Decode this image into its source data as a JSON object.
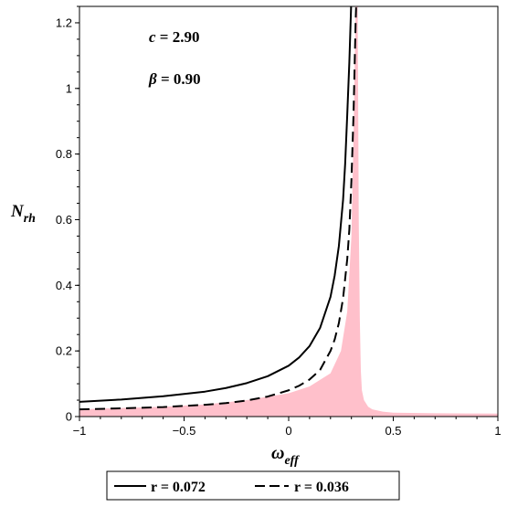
{
  "chart_data": {
    "type": "line",
    "xlabel": {
      "base": "ω",
      "sub": "eff"
    },
    "ylabel": {
      "base": "N",
      "sub": "rh"
    },
    "xlim": [
      -1,
      1
    ],
    "ylim": [
      0,
      1.25
    ],
    "x_ticks": [
      "−1",
      "−0.5",
      "0",
      "0.5",
      "1"
    ],
    "y_ticks": [
      "0",
      "0.2",
      "0.4",
      "0.6",
      "0.8",
      "1",
      "1.2"
    ],
    "annotations": [
      {
        "var": "c",
        "text": " = 2.90"
      },
      {
        "var": "β",
        "text": " = 0.90"
      }
    ],
    "shaded_region": {
      "color": "#ffc0cb",
      "x": [
        -1,
        -0.8,
        -0.6,
        -0.4,
        -0.2,
        0,
        0.1,
        0.2,
        0.25,
        0.28,
        0.3,
        0.31,
        0.32,
        0.33,
        0.335,
        0.34,
        0.345,
        0.35,
        0.36,
        0.38,
        0.4,
        0.45,
        0.5,
        0.7,
        1
      ],
      "y": [
        0.022,
        0.026,
        0.03,
        0.037,
        0.05,
        0.071,
        0.092,
        0.132,
        0.2,
        0.32,
        0.55,
        0.85,
        1.25,
        1.25,
        0.6,
        0.3,
        0.14,
        0.08,
        0.05,
        0.03,
        0.022,
        0.015,
        0.012,
        0.01,
        0.009
      ]
    },
    "series": [
      {
        "name": "r = 0.072",
        "style": "solid",
        "color": "#000000",
        "x": [
          -1,
          -0.8,
          -0.6,
          -0.4,
          -0.3,
          -0.2,
          -0.1,
          0,
          0.05,
          0.1,
          0.15,
          0.2,
          0.22,
          0.24,
          0.26,
          0.27,
          0.28,
          0.29,
          0.3,
          0.305,
          0.31
        ],
        "y": [
          0.045,
          0.052,
          0.062,
          0.076,
          0.087,
          0.102,
          0.123,
          0.155,
          0.18,
          0.215,
          0.27,
          0.365,
          0.43,
          0.52,
          0.66,
          0.77,
          0.92,
          1.08,
          1.28,
          1.3,
          1.3
        ]
      },
      {
        "name": "r = 0.036",
        "style": "dashed",
        "color": "#000000",
        "x": [
          -1,
          -0.8,
          -0.6,
          -0.4,
          -0.3,
          -0.2,
          -0.1,
          0,
          0.05,
          0.1,
          0.15,
          0.2,
          0.22,
          0.24,
          0.26,
          0.28,
          0.29,
          0.3,
          0.31,
          0.32,
          0.325,
          0.33
        ],
        "y": [
          0.022,
          0.025,
          0.029,
          0.036,
          0.041,
          0.049,
          0.061,
          0.08,
          0.094,
          0.113,
          0.142,
          0.2,
          0.235,
          0.285,
          0.36,
          0.48,
          0.57,
          0.72,
          0.92,
          1.2,
          1.3,
          1.3
        ]
      }
    ],
    "legend_position": "bottom"
  }
}
